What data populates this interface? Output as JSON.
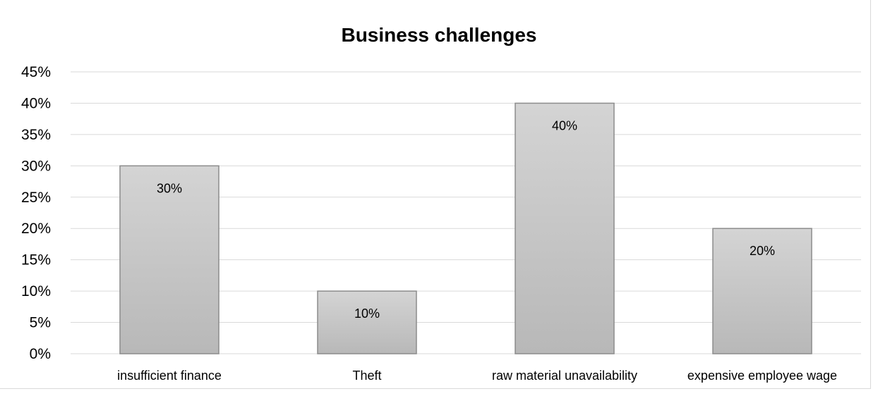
{
  "chart_data": {
    "type": "bar",
    "title": "Business challenges",
    "categories": [
      "insufficient finance",
      "Theft",
      "raw material unavailability",
      "expensive employee wage"
    ],
    "values": [
      30,
      10,
      40,
      20
    ],
    "data_labels": [
      "30%",
      "10%",
      "40%",
      "20%"
    ],
    "y_tick_labels": [
      "0%",
      "5%",
      "10%",
      "15%",
      "20%",
      "25%",
      "30%",
      "35%",
      "40%",
      "45%"
    ],
    "ylim": [
      0,
      45
    ],
    "y_step": 5,
    "xlabel": "",
    "ylabel": "",
    "grid": true,
    "legend": "none",
    "bar_color": "#c4c4c4",
    "bar_border": "#8c8c8c",
    "grid_color": "#d9d9d9"
  }
}
